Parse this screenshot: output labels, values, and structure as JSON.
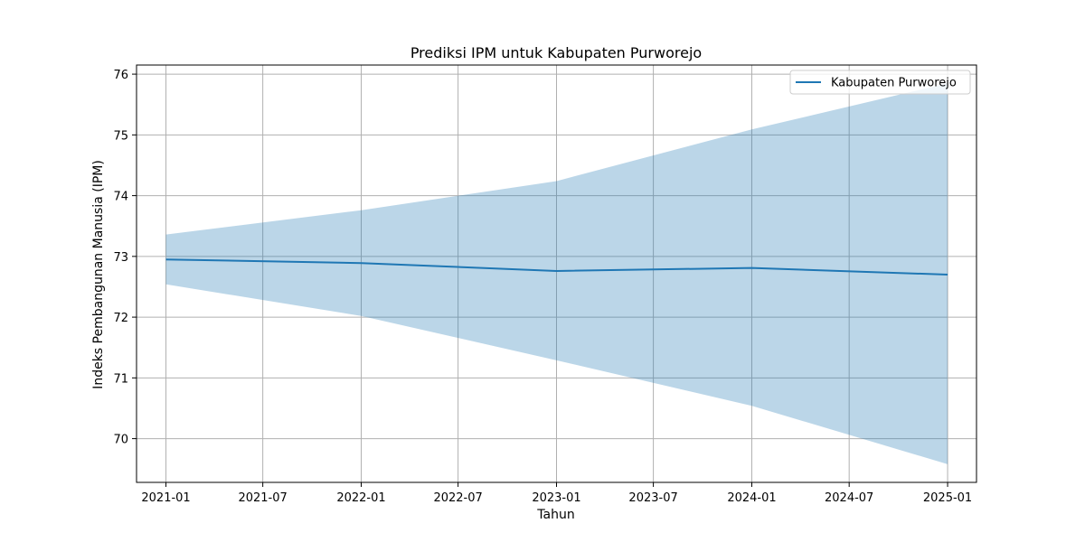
{
  "chart_data": {
    "type": "line",
    "title": "Prediksi IPM untuk Kabupaten Purworejo",
    "xlabel": "Tahun",
    "ylabel": "Indeks Pembangunan Manusia (IPM)",
    "x": [
      "2021-01-01",
      "2022-01-01",
      "2023-01-01",
      "2024-01-01",
      "2025-01-01"
    ],
    "series": [
      {
        "name": "Kabupaten Purworejo",
        "color": "#1f77b4",
        "values": [
          72.95,
          72.89,
          72.76,
          72.81,
          72.7
        ],
        "lower": [
          72.54,
          72.02,
          71.29,
          70.54,
          69.58
        ],
        "upper": [
          73.36,
          73.76,
          74.24,
          75.09,
          75.85
        ]
      }
    ],
    "band_color": "#1f77b4",
    "band_opacity": 0.3,
    "xlim": [
      "2020-11-07",
      "2025-02-24"
    ],
    "ylim": [
      69.28,
      76.15
    ],
    "x_ticks": [
      {
        "date": "2021-01-01",
        "label": "2021-01"
      },
      {
        "date": "2021-07-01",
        "label": "2021-07"
      },
      {
        "date": "2022-01-01",
        "label": "2022-01"
      },
      {
        "date": "2022-07-01",
        "label": "2022-07"
      },
      {
        "date": "2023-01-01",
        "label": "2023-01"
      },
      {
        "date": "2023-07-01",
        "label": "2023-07"
      },
      {
        "date": "2024-01-01",
        "label": "2024-01"
      },
      {
        "date": "2024-07-01",
        "label": "2024-07"
      },
      {
        "date": "2025-01-01",
        "label": "2025-01"
      }
    ],
    "y_ticks": [
      70,
      71,
      72,
      73,
      74,
      75,
      76
    ],
    "grid": true,
    "legend_position": "top-right"
  }
}
